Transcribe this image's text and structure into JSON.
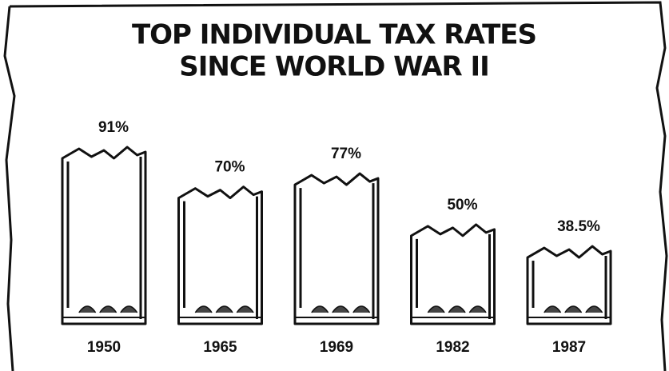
{
  "chart_data": {
    "type": "glass-bar",
    "title": [
      "TOP INDIVIDUAL TAX RATES",
      "SINCE WORLD WAR II"
    ],
    "categories": [
      "1950",
      "1965",
      "1969",
      "1982",
      "1987"
    ],
    "values": [
      91,
      70,
      77,
      50,
      38.5
    ],
    "value_labels": [
      "91%",
      "70%",
      "77%",
      "50%",
      "38.5%"
    ],
    "color": "#111111"
  }
}
